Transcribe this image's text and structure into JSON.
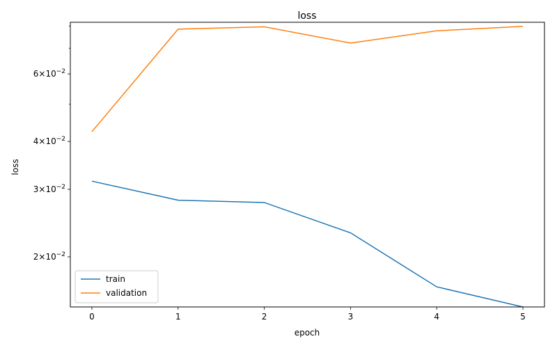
{
  "chart_data": {
    "type": "line",
    "title": "loss",
    "xlabel": "epoch",
    "ylabel": "loss",
    "yscale": "log",
    "ylim": [
      0.0148,
      0.0818
    ],
    "xlim": [
      -0.25,
      5.25
    ],
    "x": [
      0,
      1,
      2,
      3,
      4,
      5
    ],
    "x_ticks": [
      "0",
      "1",
      "2",
      "3",
      "4",
      "5"
    ],
    "y_ticks": [
      {
        "value": 0.02,
        "mantissa": "2",
        "label": "2×10⁻²"
      },
      {
        "value": 0.03,
        "mantissa": "3",
        "label": "3×10⁻²"
      },
      {
        "value": 0.04,
        "mantissa": "4",
        "label": "4×10⁻²"
      },
      {
        "value": 0.06,
        "mantissa": "6",
        "label": "6×10⁻²"
      }
    ],
    "y_minor_ticks": [
      0.05,
      0.07,
      0.08
    ],
    "grid": false,
    "legend_position": "lower-left",
    "series": [
      {
        "name": "train",
        "color": "#1f77b4",
        "values": [
          0.0315,
          0.0281,
          0.0277,
          0.0231,
          0.0167,
          0.0148
        ]
      },
      {
        "name": "validation",
        "color": "#ff7f0e",
        "values": [
          0.0424,
          0.0785,
          0.0796,
          0.0722,
          0.0777,
          0.0798
        ]
      }
    ]
  }
}
